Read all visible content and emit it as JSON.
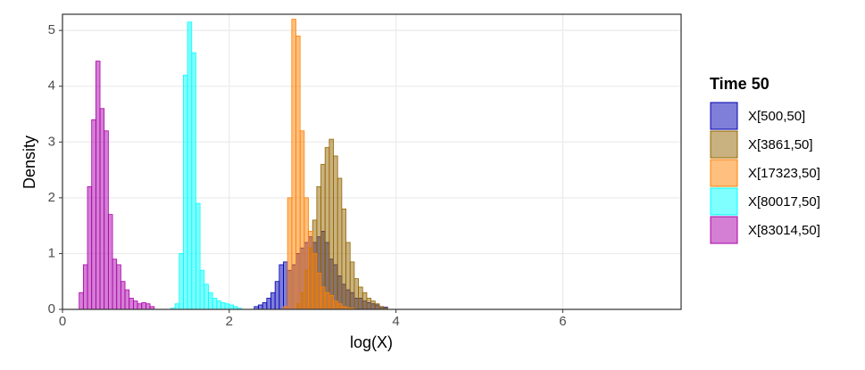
{
  "chart_data": {
    "type": "histogram",
    "x_label": "log(X)",
    "y_label": "Density",
    "legend_title": "Time 50",
    "legend_position": "right",
    "grid": true,
    "xlim": [
      0,
      7.42
    ],
    "ylim": [
      0,
      5.29
    ],
    "xticks": [
      0,
      2,
      4,
      6
    ],
    "yticks": [
      0,
      1,
      2,
      3,
      4,
      5
    ],
    "series": [
      {
        "name": "X[500,50]",
        "color": "#0000b3",
        "bins": [
          2.3,
          2.35,
          2.4,
          2.45,
          2.5,
          2.55,
          2.6,
          2.65,
          2.7,
          2.75,
          2.8,
          2.85,
          2.9,
          2.95,
          3.0,
          3.05,
          3.1,
          3.15,
          3.2,
          3.25,
          3.3,
          3.35,
          3.4,
          3.45,
          3.5,
          3.55,
          3.6,
          3.65,
          3.7,
          3.75,
          3.8,
          3.85,
          3.9
        ],
        "values": [
          0.05,
          0.08,
          0.12,
          0.2,
          0.3,
          0.5,
          0.8,
          0.85,
          0.7,
          0.8,
          1.0,
          1.1,
          1.2,
          1.3,
          1.2,
          1.3,
          1.4,
          1.2,
          0.9,
          0.8,
          0.6,
          0.45,
          0.35,
          0.3,
          0.2,
          0.2,
          0.15,
          0.12,
          0.1,
          0.08,
          0.05,
          0.04
        ]
      },
      {
        "name": "X[3861,50]",
        "color": "#936500",
        "bins": [
          2.8,
          2.85,
          2.9,
          2.95,
          3.0,
          3.05,
          3.1,
          3.15,
          3.2,
          3.25,
          3.3,
          3.35,
          3.4,
          3.45,
          3.5,
          3.55,
          3.6,
          3.65,
          3.7,
          3.75,
          3.8,
          3.85,
          3.9
        ],
        "values": [
          0.1,
          0.3,
          0.7,
          1.1,
          1.6,
          2.2,
          2.6,
          2.9,
          3.05,
          2.75,
          2.35,
          1.8,
          1.2,
          0.85,
          0.55,
          0.4,
          0.3,
          0.2,
          0.15,
          0.1,
          0.05,
          0.03
        ]
      },
      {
        "name": "X[17323,50]",
        "color": "#ff8000",
        "bins": [
          2.65,
          2.7,
          2.75,
          2.8,
          2.85,
          2.9,
          2.95,
          3.0,
          3.05,
          3.1,
          3.15,
          3.2,
          3.25,
          3.3,
          3.35,
          3.4,
          3.45,
          3.5
        ],
        "values": [
          0.05,
          2.0,
          5.2,
          4.9,
          3.2,
          2.0,
          1.4,
          1.0,
          0.65,
          0.4,
          0.3,
          0.25,
          0.15,
          0.1,
          0.05,
          0.03,
          0.02
        ]
      },
      {
        "name": "X[80017,50]",
        "color": "#00ffff",
        "bins": [
          1.3,
          1.35,
          1.4,
          1.45,
          1.5,
          1.55,
          1.6,
          1.65,
          1.7,
          1.75,
          1.8,
          1.85,
          1.9,
          1.95,
          2.0,
          2.05,
          2.1,
          2.15
        ],
        "values": [
          0.02,
          0.1,
          1.0,
          4.2,
          5.15,
          4.6,
          1.9,
          0.7,
          0.45,
          0.3,
          0.2,
          0.15,
          0.12,
          0.1,
          0.08,
          0.05,
          0.02
        ]
      },
      {
        "name": "X[83014,50]",
        "color": "#aa00aa",
        "bins": [
          0.2,
          0.25,
          0.3,
          0.35,
          0.4,
          0.45,
          0.5,
          0.55,
          0.6,
          0.65,
          0.7,
          0.75,
          0.8,
          0.85,
          0.9,
          0.95,
          1.0,
          1.05,
          1.1
        ],
        "values": [
          0.3,
          0.8,
          2.2,
          3.4,
          4.45,
          3.6,
          3.2,
          1.7,
          0.9,
          0.8,
          0.5,
          0.35,
          0.2,
          0.15,
          0.1,
          0.12,
          0.1,
          0.05
        ]
      }
    ]
  }
}
